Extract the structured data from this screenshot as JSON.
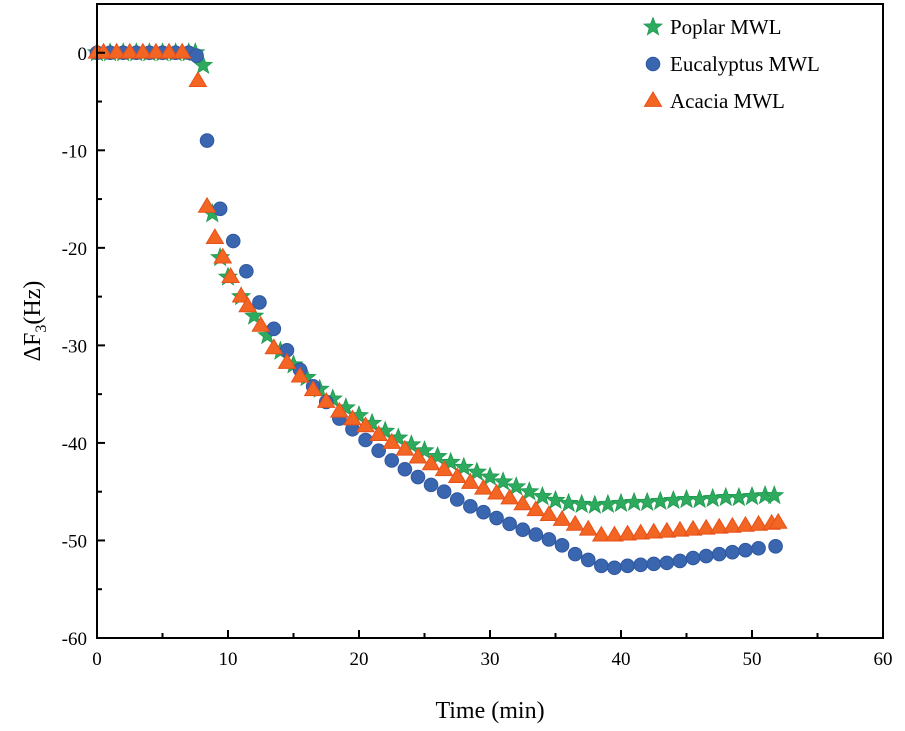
{
  "chart_data": {
    "type": "scatter",
    "xlabel": "Time (min)",
    "ylabel": {
      "prefix": "ΔF",
      "sub": "3",
      "suffix": "(Hz)"
    },
    "xlim": [
      0,
      60
    ],
    "ylim": [
      -60,
      5
    ],
    "xticks": [
      0,
      10,
      20,
      30,
      40,
      50,
      60
    ],
    "yticks": [
      0,
      -10,
      -20,
      -30,
      -40,
      -50,
      -60
    ],
    "grid": false,
    "legend_position": "top-right",
    "series": [
      {
        "name": "Poplar MWL",
        "marker": "star",
        "color": "#2eaa5e",
        "x": [
          0,
          1,
          2,
          3,
          4,
          5,
          6,
          7,
          7.5,
          8.1,
          8.8,
          9.4,
          10,
          11,
          12,
          13,
          14,
          15,
          16,
          17,
          18,
          19,
          20,
          21,
          22,
          23,
          24,
          25,
          26,
          27,
          28,
          29,
          30,
          31,
          32,
          33,
          34,
          35,
          36,
          37,
          38,
          39,
          40,
          41,
          42,
          43,
          44,
          45,
          46,
          47,
          48,
          49,
          50,
          51,
          51.7
        ],
        "y": [
          0,
          0,
          0,
          0,
          0,
          0,
          0,
          0,
          0,
          -1.3,
          -16.5,
          -21,
          -23,
          -25,
          -27,
          -29,
          -30.6,
          -32,
          -33.3,
          -34.5,
          -35.5,
          -36.4,
          -37.2,
          -38,
          -38.8,
          -39.5,
          -40.2,
          -40.8,
          -41.4,
          -42,
          -42.5,
          -43,
          -43.5,
          -44,
          -44.5,
          -45,
          -45.5,
          -45.9,
          -46.2,
          -46.3,
          -46.4,
          -46.3,
          -46.2,
          -46.1,
          -46.1,
          -46,
          -45.9,
          -45.8,
          -45.8,
          -45.7,
          -45.6,
          -45.6,
          -45.5,
          -45.4,
          -45.4
        ]
      },
      {
        "name": "Eucalyptus MWL",
        "marker": "circle",
        "color": "#3a66b0",
        "x": [
          0,
          1,
          2,
          3,
          4,
          5,
          6,
          7,
          7.6,
          8.4,
          9.4,
          10.4,
          11.4,
          12.4,
          13.5,
          14.5,
          15.5,
          16.5,
          17.5,
          18.5,
          19.5,
          20.5,
          21.5,
          22.5,
          23.5,
          24.5,
          25.5,
          26.5,
          27.5,
          28.5,
          29.5,
          30.5,
          31.5,
          32.5,
          33.5,
          34.5,
          35.5,
          36.5,
          37.5,
          38.5,
          39.5,
          40.5,
          41.5,
          42.5,
          43.5,
          44.5,
          45.5,
          46.5,
          47.5,
          48.5,
          49.5,
          50.5,
          51.8
        ],
        "y": [
          0,
          0,
          0,
          0,
          0,
          0,
          0,
          0,
          -0.3,
          -9,
          -16,
          -19.3,
          -22.4,
          -25.6,
          -28.3,
          -30.5,
          -32.5,
          -34.2,
          -35.8,
          -37.5,
          -38.6,
          -39.7,
          -40.8,
          -41.8,
          -42.7,
          -43.5,
          -44.3,
          -45,
          -45.8,
          -46.5,
          -47.1,
          -47.7,
          -48.3,
          -48.9,
          -49.4,
          -49.9,
          -50.5,
          -51.4,
          -52,
          -52.6,
          -52.8,
          -52.6,
          -52.5,
          -52.4,
          -52.3,
          -52.1,
          -51.8,
          -51.6,
          -51.4,
          -51.2,
          -51,
          -50.8,
          -50.6
        ]
      },
      {
        "name": "Acacia MWL",
        "marker": "triangle",
        "color": "#f26522",
        "x": [
          0,
          0.5,
          1.5,
          2.5,
          3.5,
          4.5,
          5.5,
          6.5,
          7.7,
          8.4,
          9,
          9.6,
          10.2,
          11,
          11.5,
          12.5,
          13.5,
          14.5,
          15.5,
          16.5,
          17.5,
          18.5,
          19.5,
          20.5,
          21.5,
          22.5,
          23.5,
          24.5,
          25.5,
          26.5,
          27.5,
          28.5,
          29.5,
          30.5,
          31.5,
          32.5,
          33.5,
          34.5,
          35.5,
          36.5,
          37.5,
          38.5,
          39.5,
          40.5,
          41.5,
          42.5,
          43.5,
          44.5,
          45.5,
          46.5,
          47.5,
          48.5,
          49.5,
          50.5,
          51.5,
          52
        ],
        "y": [
          0,
          0,
          0,
          0,
          0,
          0,
          0,
          0,
          -2.9,
          -15.8,
          -19,
          -21,
          -23,
          -25,
          -26,
          -28,
          -30.3,
          -31.8,
          -33.2,
          -34.6,
          -35.8,
          -36.8,
          -37.6,
          -38.3,
          -39.2,
          -40,
          -40.7,
          -41.5,
          -42.2,
          -42.8,
          -43.5,
          -44.1,
          -44.7,
          -45.2,
          -45.7,
          -46.3,
          -46.9,
          -47.4,
          -47.9,
          -48.4,
          -48.9,
          -49.5,
          -49.5,
          -49.4,
          -49.3,
          -49.2,
          -49.1,
          -49,
          -48.9,
          -48.8,
          -48.7,
          -48.6,
          -48.5,
          -48.4,
          -48.3,
          -48.2
        ]
      }
    ]
  }
}
